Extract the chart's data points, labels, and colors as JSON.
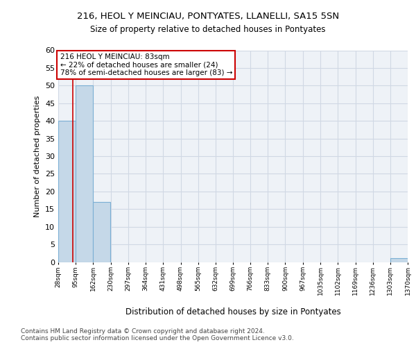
{
  "title1": "216, HEOL Y MEINCIAU, PONTYATES, LLANELLI, SA15 5SN",
  "title2": "Size of property relative to detached houses in Pontyates",
  "xlabel": "Distribution of detached houses by size in Pontyates",
  "ylabel": "Number of detached properties",
  "bin_edges": [
    28,
    95,
    162,
    230,
    297,
    364,
    431,
    498,
    565,
    632,
    699,
    766,
    833,
    900,
    967,
    1035,
    1102,
    1169,
    1236,
    1303,
    1370
  ],
  "bar_heights": [
    40,
    50,
    17,
    0,
    0,
    0,
    0,
    0,
    0,
    0,
    0,
    0,
    0,
    0,
    0,
    0,
    0,
    0,
    0,
    1
  ],
  "bar_color": "#c5d8e8",
  "bar_edge_color": "#7bafd4",
  "subject_size": 83,
  "subject_line_color": "#cc0000",
  "ylim": [
    0,
    60
  ],
  "yticks": [
    0,
    5,
    10,
    15,
    20,
    25,
    30,
    35,
    40,
    45,
    50,
    55,
    60
  ],
  "annotation_line1": "216 HEOL Y MEINCIAU: 83sqm",
  "annotation_line2": "← 22% of detached houses are smaller (24)",
  "annotation_line3": "78% of semi-detached houses are larger (83) →",
  "annotation_box_color": "#ffffff",
  "annotation_box_edge_color": "#cc0000",
  "grid_color": "#d0d8e4",
  "bg_color": "#eef2f7",
  "footer1": "Contains HM Land Registry data © Crown copyright and database right 2024.",
  "footer2": "Contains public sector information licensed under the Open Government Licence v3.0."
}
